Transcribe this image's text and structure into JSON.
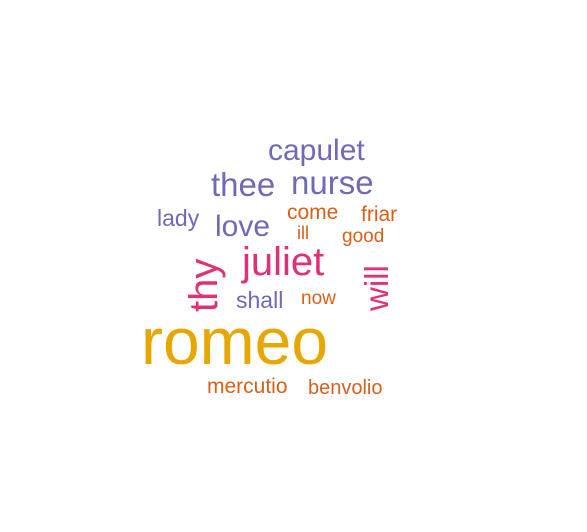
{
  "colors": {
    "gold": "#E6A800",
    "magenta": "#E0307A",
    "purple": "#6E6AB8",
    "orange": "#D9601A"
  },
  "words": {
    "romeo": "romeo",
    "juliet": "juliet",
    "thy": "thy",
    "will": "will",
    "capulet": "capulet",
    "thee": "thee",
    "nurse": "nurse",
    "lady": "lady",
    "love": "love",
    "come": "come",
    "friar": "friar",
    "ill": "ill",
    "good": "good",
    "shall": "shall",
    "now": "now",
    "mercutio": "mercutio",
    "benvolio": "benvolio"
  },
  "word_colors": {
    "romeo": "gold",
    "juliet": "magenta",
    "thy": "magenta",
    "will": "magenta",
    "capulet": "purple",
    "thee": "purple",
    "nurse": "purple",
    "lady": "purple",
    "love": "purple",
    "shall": "purple",
    "come": "orange",
    "friar": "orange",
    "ill": "orange",
    "good": "orange",
    "now": "orange",
    "mercutio": "orange",
    "benvolio": "orange"
  }
}
